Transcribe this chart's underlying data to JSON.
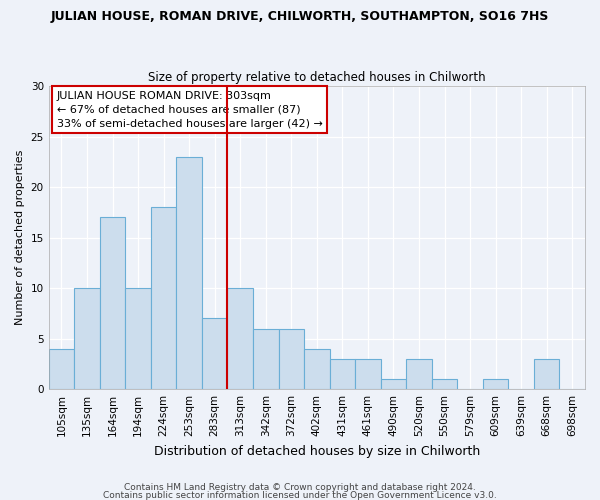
{
  "title": "JULIAN HOUSE, ROMAN DRIVE, CHILWORTH, SOUTHAMPTON, SO16 7HS",
  "subtitle": "Size of property relative to detached houses in Chilworth",
  "xlabel": "Distribution of detached houses by size in Chilworth",
  "ylabel": "Number of detached properties",
  "bin_labels": [
    "105sqm",
    "135sqm",
    "164sqm",
    "194sqm",
    "224sqm",
    "253sqm",
    "283sqm",
    "313sqm",
    "342sqm",
    "372sqm",
    "402sqm",
    "431sqm",
    "461sqm",
    "490sqm",
    "520sqm",
    "550sqm",
    "579sqm",
    "609sqm",
    "639sqm",
    "668sqm",
    "698sqm"
  ],
  "bar_values": [
    4,
    10,
    17,
    10,
    18,
    23,
    7,
    10,
    6,
    6,
    4,
    3,
    3,
    1,
    3,
    1,
    0,
    1,
    0,
    3,
    0
  ],
  "bar_color": "#ccdded",
  "bar_edge_color": "#6aaed6",
  "reference_line_color": "#cc0000",
  "annotation_text": "JULIAN HOUSE ROMAN DRIVE: 303sqm\n← 67% of detached houses are smaller (87)\n33% of semi-detached houses are larger (42) →",
  "annotation_box_color": "#ffffff",
  "annotation_box_edge_color": "#cc0000",
  "ylim": [
    0,
    30
  ],
  "yticks": [
    0,
    5,
    10,
    15,
    20,
    25,
    30
  ],
  "footer_line1": "Contains HM Land Registry data © Crown copyright and database right 2024.",
  "footer_line2": "Contains public sector information licensed under the Open Government Licence v3.0.",
  "bg_color": "#eef2f9",
  "grid_color": "#ffffff",
  "title_fontsize": 9,
  "subtitle_fontsize": 8.5,
  "ylabel_fontsize": 8,
  "xlabel_fontsize": 9,
  "tick_fontsize": 7.5,
  "footer_fontsize": 6.5
}
